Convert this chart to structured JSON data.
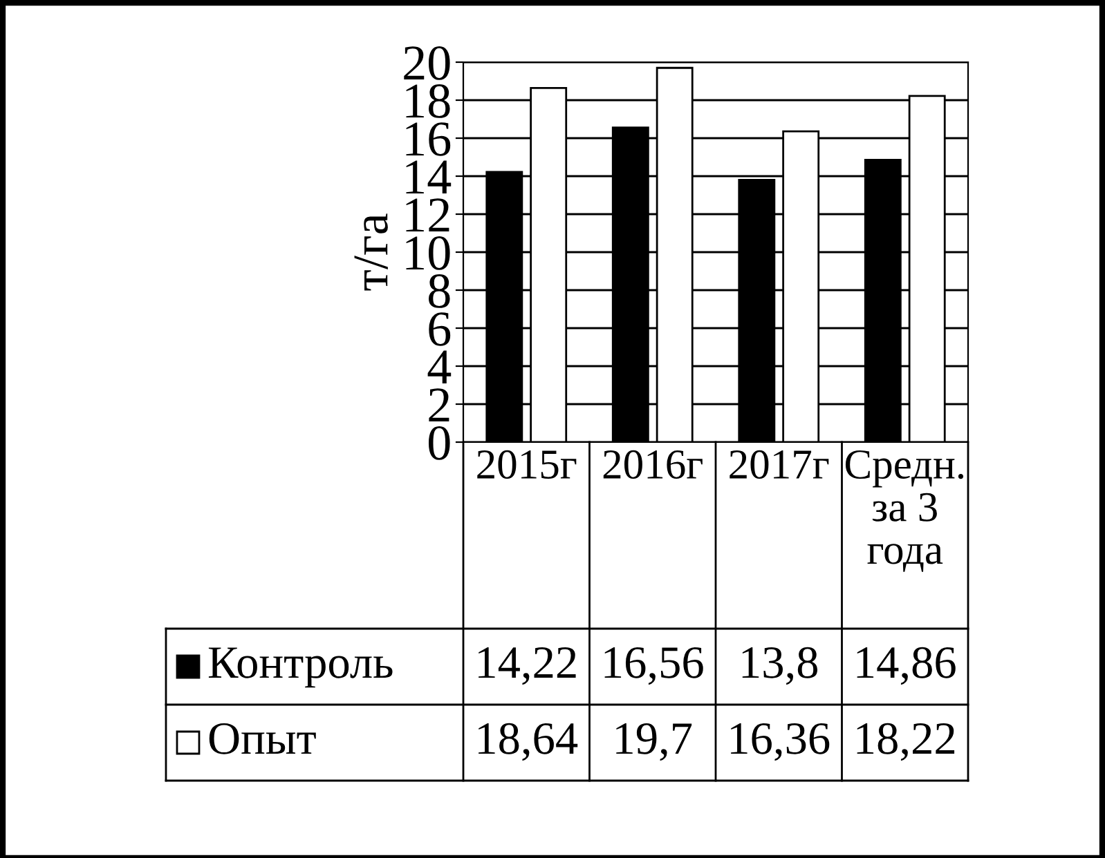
{
  "chart_data": {
    "type": "bar",
    "ylabel": "т/га",
    "categories": [
      "2015г",
      "2016г",
      "2017г",
      "Средн. за 3 года"
    ],
    "series": [
      {
        "name": "Контроль",
        "color": "#000000",
        "values": [
          14.22,
          16.56,
          13.8,
          14.86
        ],
        "value_labels": [
          "14,22",
          "16,56",
          "13,8",
          "14,86"
        ]
      },
      {
        "name": "Опыт",
        "color": "#ffffff",
        "values": [
          18.64,
          19.7,
          16.36,
          18.22
        ],
        "value_labels": [
          "18,64",
          "19,7",
          "16,36",
          "18,22"
        ]
      }
    ],
    "ylim": [
      0,
      20
    ],
    "yticks": [
      0,
      2,
      4,
      6,
      8,
      10,
      12,
      14,
      16,
      18,
      20
    ],
    "grid": "y",
    "legend": "bottom"
  }
}
